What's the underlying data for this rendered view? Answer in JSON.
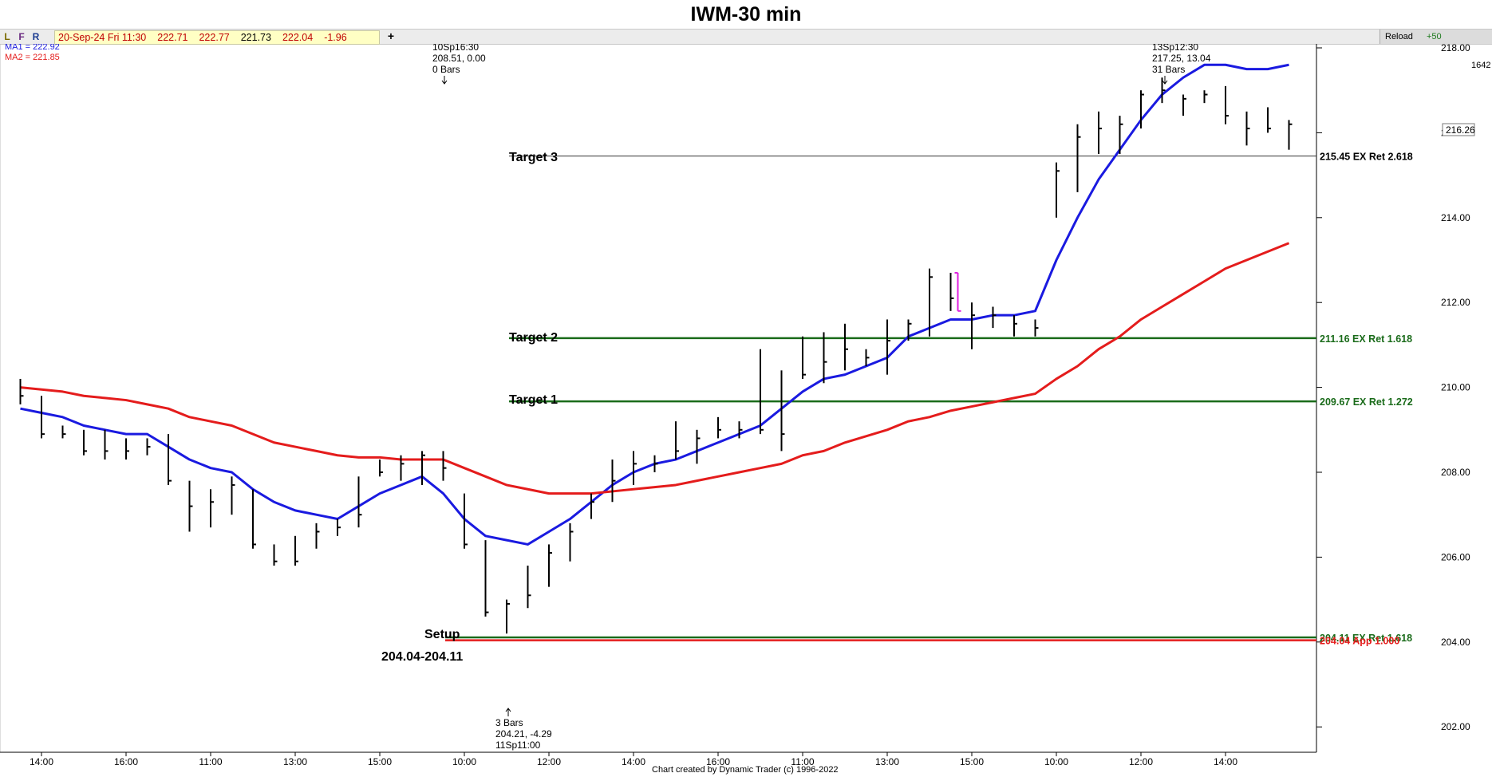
{
  "title": "IWM-30 min",
  "toolbar": {
    "l": "L",
    "f": "F",
    "r": "R",
    "quote": [
      "20-Sep-24 Fri 11:30",
      "222.71",
      "222.77",
      "221.73",
      "222.04",
      "-1.96"
    ],
    "plus": "+",
    "reload": "Reload",
    "plus50": "+50",
    "bars_count": "1642 bars"
  },
  "colors": {
    "ma1": "#1a1ae0",
    "ma2": "#e41c1c",
    "target_line": "#1a6b1a",
    "target3_line": "#333333",
    "setup_red": "#e41c1c",
    "marker_bar": "#e020e0"
  },
  "legend": {
    "ma1": "MA1 = 222.92",
    "ma2": "MA2 = 221.85"
  },
  "annotations": {
    "top_left": [
      "10Sp16:30",
      "208.51, 0.00",
      "0 Bars"
    ],
    "top_right": [
      "13Sp12:30",
      "217.25, 13.04",
      "31 Bars"
    ],
    "bottom": [
      "3 Bars",
      "204.21, -4.29",
      "11Sp11:00"
    ],
    "setup_label": "Setup",
    "setup_range": "204.04-204.11",
    "target1": "Target 1",
    "target2": "Target 2",
    "target3": "Target 3",
    "price_box": "216.26",
    "credit": "Chart created by Dynamic Trader  (c)  1996-2022"
  },
  "chart_data": {
    "type": "bar",
    "title": "IWM-30 min",
    "ylim": [
      201.5,
      218.4
    ],
    "y_ticks": [
      "218.00",
      "216.00",
      "214.00",
      "212.00",
      "210.00",
      "208.00",
      "206.00",
      "204.00",
      "202.00"
    ],
    "x_ticks": [
      "14:00",
      "16:00",
      "11:00",
      "13:00",
      "15:00",
      "10:00",
      "12:00",
      "14:00",
      "16:00",
      "11:00",
      "13:00",
      "15:00",
      "10:00",
      "12:00",
      "14:00"
    ],
    "x_tick_index": [
      1,
      5,
      9,
      13,
      17,
      21,
      25,
      29,
      33,
      37,
      41,
      45,
      49,
      53,
      57
    ],
    "levels": [
      {
        "label": "Target 3",
        "value": 215.45,
        "text": "215.45 EX Ret 2.618"
      },
      {
        "label": "Target 2",
        "value": 211.16,
        "text": "211.16 EX Ret 1.618"
      },
      {
        "label": "Target 1",
        "value": 209.67,
        "text": "209.67 EX Ret 1.272"
      },
      {
        "label": "Setup",
        "value": 204.11,
        "text": "204.11 EX Ret 1.618"
      },
      {
        "label": "Setup",
        "value": 204.04,
        "text": "204.04 App 1.000"
      }
    ],
    "ohlc": [
      [
        210.2,
        209.6,
        209.8
      ],
      [
        209.8,
        208.8,
        208.9
      ],
      [
        209.1,
        208.8,
        208.9
      ],
      [
        209.0,
        208.4,
        208.5
      ],
      [
        209.0,
        208.3,
        208.5
      ],
      [
        208.8,
        208.3,
        208.5
      ],
      [
        208.8,
        208.4,
        208.6
      ],
      [
        208.9,
        207.7,
        207.8
      ],
      [
        207.8,
        206.6,
        207.2
      ],
      [
        207.6,
        206.7,
        207.3
      ],
      [
        207.9,
        207.0,
        207.7
      ],
      [
        207.6,
        206.2,
        206.3
      ],
      [
        206.3,
        205.8,
        205.9
      ],
      [
        206.5,
        205.8,
        205.9
      ],
      [
        206.8,
        206.2,
        206.6
      ],
      [
        206.9,
        206.5,
        206.7
      ],
      [
        207.9,
        206.7,
        207.0
      ],
      [
        208.3,
        207.9,
        208.0
      ],
      [
        208.4,
        207.8,
        208.2
      ],
      [
        208.5,
        207.7,
        208.4
      ],
      [
        208.5,
        207.8,
        208.1
      ],
      [
        207.5,
        206.2,
        206.3
      ],
      [
        206.4,
        204.6,
        204.7
      ],
      [
        205.0,
        204.2,
        204.9
      ],
      [
        205.8,
        204.8,
        205.1
      ],
      [
        206.3,
        205.3,
        206.1
      ],
      [
        206.8,
        205.9,
        206.6
      ],
      [
        207.5,
        206.9,
        207.3
      ],
      [
        208.3,
        207.3,
        207.8
      ],
      [
        208.5,
        207.7,
        208.2
      ],
      [
        208.4,
        208.0,
        208.2
      ],
      [
        209.2,
        208.3,
        208.5
      ],
      [
        209.0,
        208.2,
        208.8
      ],
      [
        209.3,
        208.8,
        209.0
      ],
      [
        209.2,
        208.8,
        209.0
      ],
      [
        210.9,
        208.9,
        209.0
      ],
      [
        210.4,
        208.5,
        208.9
      ],
      [
        211.2,
        210.2,
        210.3
      ],
      [
        211.3,
        210.1,
        210.6
      ],
      [
        211.5,
        210.4,
        210.9
      ],
      [
        210.9,
        210.5,
        210.7
      ],
      [
        211.6,
        210.3,
        211.1
      ],
      [
        211.6,
        211.1,
        211.5
      ],
      [
        212.8,
        211.2,
        212.6
      ],
      [
        212.7,
        211.8,
        212.1
      ],
      [
        212.0,
        210.9,
        211.7
      ],
      [
        211.9,
        211.4,
        211.7
      ],
      [
        211.7,
        211.2,
        211.5
      ],
      [
        211.6,
        211.2,
        211.4
      ],
      [
        215.3,
        214.0,
        215.1
      ],
      [
        216.2,
        214.6,
        215.9
      ],
      [
        216.5,
        215.5,
        216.1
      ],
      [
        216.4,
        215.5,
        216.2
      ],
      [
        217.0,
        216.1,
        216.9
      ],
      [
        217.3,
        216.7,
        217.0
      ],
      [
        216.9,
        216.4,
        216.8
      ],
      [
        217.0,
        216.7,
        216.9
      ],
      [
        217.1,
        216.2,
        216.4
      ],
      [
        216.5,
        215.7,
        216.1
      ],
      [
        216.6,
        216.0,
        216.1
      ],
      [
        216.3,
        215.6,
        216.2
      ]
    ],
    "marker_bar": {
      "index": 44,
      "high": 212.7,
      "low": 211.8
    },
    "series": [
      {
        "name": "MA1",
        "values": [
          209.5,
          209.4,
          209.3,
          209.1,
          209.0,
          208.9,
          208.9,
          208.6,
          208.3,
          208.1,
          208.0,
          207.6,
          207.3,
          207.1,
          207.0,
          206.9,
          207.2,
          207.5,
          207.7,
          207.9,
          207.5,
          206.9,
          206.5,
          206.4,
          206.3,
          206.6,
          206.9,
          207.3,
          207.7,
          208.0,
          208.2,
          208.3,
          208.5,
          208.7,
          208.9,
          209.1,
          209.5,
          209.9,
          210.2,
          210.3,
          210.5,
          210.7,
          211.2,
          211.4,
          211.6,
          211.6,
          211.7,
          211.7,
          211.8,
          213.0,
          214.0,
          214.9,
          215.6,
          216.3,
          216.9,
          217.3,
          217.6,
          217.6,
          217.5,
          217.5,
          217.6
        ]
      },
      {
        "name": "MA2",
        "values": [
          210.0,
          209.95,
          209.9,
          209.8,
          209.75,
          209.7,
          209.6,
          209.5,
          209.3,
          209.2,
          209.1,
          208.9,
          208.7,
          208.6,
          208.5,
          208.4,
          208.35,
          208.35,
          208.3,
          208.3,
          208.3,
          208.1,
          207.9,
          207.7,
          207.6,
          207.5,
          207.5,
          207.5,
          207.55,
          207.6,
          207.65,
          207.7,
          207.8,
          207.9,
          208.0,
          208.1,
          208.2,
          208.4,
          208.5,
          208.7,
          208.85,
          209.0,
          209.2,
          209.3,
          209.45,
          209.55,
          209.65,
          209.75,
          209.85,
          210.2,
          210.5,
          210.9,
          211.2,
          211.6,
          211.9,
          212.2,
          212.5,
          212.8,
          213.0,
          213.2,
          213.4
        ]
      }
    ]
  }
}
